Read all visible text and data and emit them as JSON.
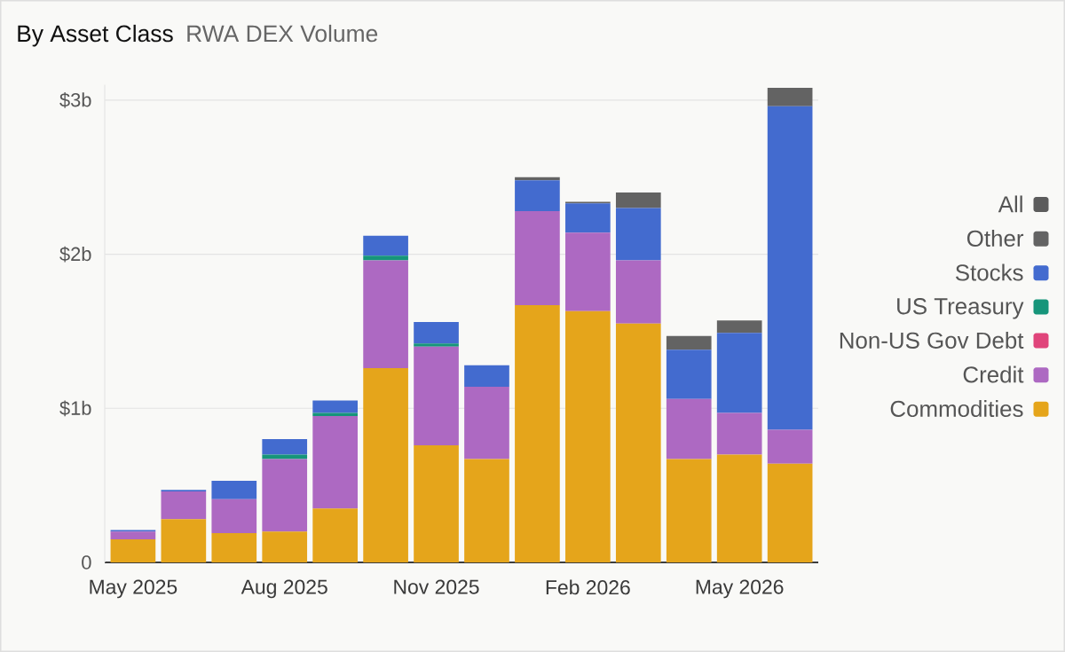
{
  "chart_data": {
    "type": "bar",
    "title": "By Asset Class",
    "subtitle": "RWA DEX Volume",
    "categories": [
      "May 2025",
      null,
      null,
      "Aug 2025",
      null,
      null,
      "Nov 2025",
      null,
      null,
      "Feb 2026",
      null,
      null,
      "May 2026",
      null
    ],
    "stacked": true,
    "series": [
      {
        "name": "Commodities",
        "color": "#e5a51b",
        "values": [
          0.15,
          0.28,
          0.19,
          0.2,
          0.35,
          1.26,
          0.76,
          0.67,
          1.67,
          1.63,
          1.55,
          0.67,
          0.7,
          0.64
        ]
      },
      {
        "name": "Credit",
        "color": "#ad69c2",
        "values": [
          0.05,
          0.18,
          0.22,
          0.47,
          0.6,
          0.7,
          0.64,
          0.47,
          0.61,
          0.51,
          0.41,
          0.39,
          0.27,
          0.22
        ]
      },
      {
        "name": "Non-US Gov Debt",
        "color": "#e0457b",
        "values": [
          null,
          null,
          null,
          null,
          null,
          null,
          null,
          null,
          null,
          null,
          null,
          null,
          null,
          null
        ]
      },
      {
        "name": "US Treasury",
        "color": "#16957a",
        "values": [
          null,
          null,
          null,
          0.03,
          0.02,
          0.03,
          0.02,
          null,
          null,
          null,
          null,
          null,
          null,
          null
        ]
      },
      {
        "name": "Stocks",
        "color": "#436bcf",
        "values": [
          0.01,
          0.01,
          0.12,
          0.1,
          0.08,
          0.13,
          0.14,
          0.14,
          0.2,
          0.19,
          0.34,
          0.32,
          0.52,
          2.1
        ]
      },
      {
        "name": "Other",
        "color": "#636363",
        "values": [
          null,
          null,
          null,
          null,
          null,
          null,
          null,
          null,
          0.02,
          0.01,
          0.1,
          0.09,
          0.08,
          0.12
        ]
      },
      {
        "name": "All",
        "color": "#5c5c5c",
        "values": [
          null,
          null,
          null,
          null,
          null,
          null,
          null,
          null,
          null,
          null,
          null,
          null,
          null,
          null
        ]
      }
    ],
    "ylim": [
      0,
      3.1
    ],
    "yticks": [
      0,
      {
        "value": 1,
        "label": "$1b"
      },
      {
        "value": 2,
        "label": "$2b"
      },
      {
        "value": 3,
        "label": "$3b"
      }
    ],
    "grid": "y",
    "legend": "right"
  }
}
